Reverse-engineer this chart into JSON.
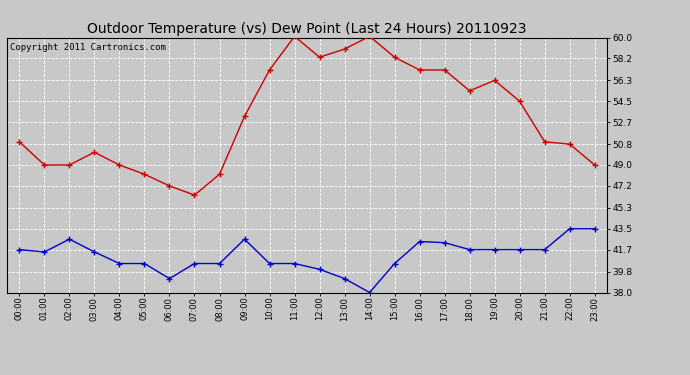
{
  "title": "Outdoor Temperature (vs) Dew Point (Last 24 Hours) 20110923",
  "copyright": "Copyright 2011 Cartronics.com",
  "x_labels": [
    "00:00",
    "01:00",
    "02:00",
    "03:00",
    "04:00",
    "05:00",
    "06:00",
    "07:00",
    "08:00",
    "09:00",
    "10:00",
    "11:00",
    "12:00",
    "13:00",
    "14:00",
    "15:00",
    "16:00",
    "17:00",
    "18:00",
    "19:00",
    "20:00",
    "21:00",
    "22:00",
    "23:00"
  ],
  "temp_data": [
    51.0,
    49.0,
    49.0,
    50.1,
    49.0,
    48.2,
    47.2,
    46.4,
    48.2,
    53.2,
    57.2,
    60.1,
    58.3,
    59.0,
    60.1,
    58.3,
    57.2,
    57.2,
    55.4,
    56.3,
    54.5,
    51.0,
    50.8,
    49.0
  ],
  "dew_data": [
    41.7,
    41.5,
    42.6,
    41.5,
    40.5,
    40.5,
    39.2,
    40.5,
    40.5,
    42.6,
    40.5,
    40.5,
    40.0,
    39.2,
    38.0,
    40.5,
    42.4,
    42.3,
    41.7,
    41.7,
    41.7,
    41.7,
    43.5,
    43.5
  ],
  "temp_color": "#cc0000",
  "dew_color": "#0000cc",
  "bg_color": "#c8c8c8",
  "plot_bg_color": "#c8c8c8",
  "grid_color": "#ffffff",
  "ylim_min": 38.0,
  "ylim_max": 60.0,
  "yticks": [
    38.0,
    39.8,
    41.7,
    43.5,
    45.3,
    47.2,
    49.0,
    50.8,
    52.7,
    54.5,
    56.3,
    58.2,
    60.0
  ],
  "title_fontsize": 10,
  "copyright_fontsize": 6.5
}
